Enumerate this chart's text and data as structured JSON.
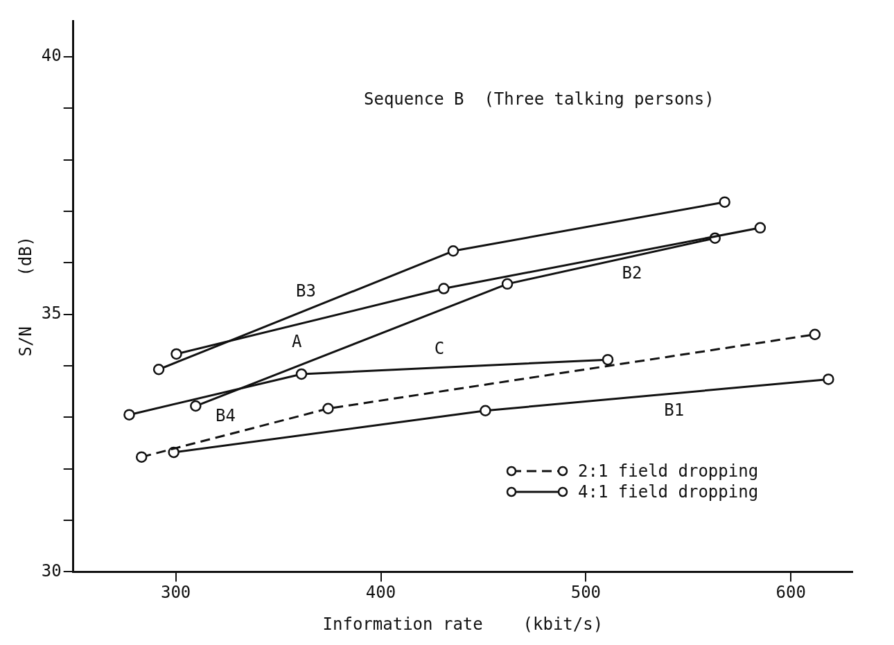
{
  "chart_data": {
    "type": "line",
    "title": "Sequence B  (Three talking persons)",
    "xlabel": "Information rate    (kbit/s)",
    "ylabel": "S/N     (dB)",
    "series": [
      {
        "name": "B3",
        "color": "#111111",
        "x": [
          291.7,
          435.3,
          567.7
        ],
        "values": [
          33.93,
          36.23,
          37.18
        ]
      },
      {
        "name": "A",
        "color": "#111111",
        "x": [
          300.3,
          430.7,
          585
        ],
        "values": [
          34.23,
          35.5,
          36.68
        ]
      },
      {
        "name": "B2",
        "color": "#111111",
        "x": [
          309.7,
          461.7,
          563
        ],
        "values": [
          33.22,
          35.59,
          36.48
        ]
      },
      {
        "name": "C",
        "color": "#111111",
        "x": [
          277.3,
          361.3,
          510.7
        ],
        "values": [
          33.05,
          33.84,
          34.12
        ]
      },
      {
        "name": "B4",
        "color": "#111111",
        "line_style": "dashed",
        "x": [
          283.3,
          374.3,
          611.7
        ],
        "values": [
          32.23,
          33.17,
          34.61
        ]
      },
      {
        "name": "B1",
        "color": "#111111",
        "x": [
          299,
          451,
          618.3
        ],
        "values": [
          32.32,
          33.13,
          33.74
        ]
      }
    ],
    "xlim": [
      250,
      630
    ],
    "xticks": [
      300,
      400,
      500,
      600
    ],
    "ylim": [
      30,
      40.7
    ],
    "yticks": [
      30,
      {
        "value": 31,
        "label": null
      },
      {
        "value": 32,
        "label": null
      },
      {
        "value": 33,
        "label": null
      },
      {
        "value": 34,
        "label": null
      },
      35,
      {
        "value": 36,
        "label": null
      },
      {
        "value": 37,
        "label": null
      },
      {
        "value": 38,
        "label": null
      },
      {
        "value": 39,
        "label": null
      },
      40
    ],
    "marker": "circle",
    "line_style": "solid",
    "grid": false,
    "legend": "bottom right",
    "annotations": [
      "2:1 field dropping",
      "4:1 field dropping"
    ]
  }
}
